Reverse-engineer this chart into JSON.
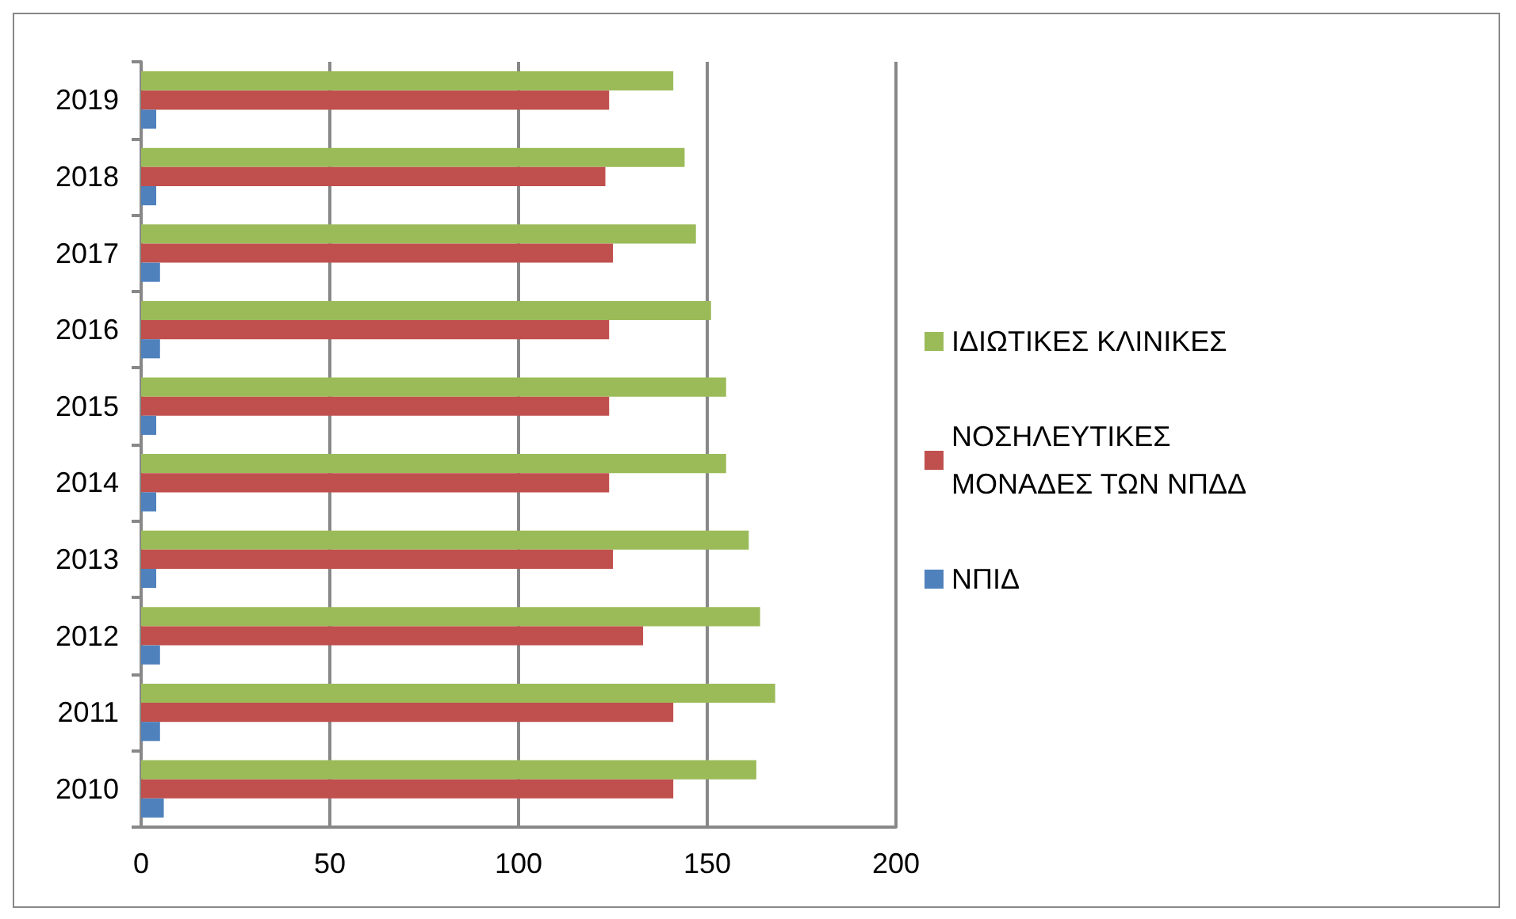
{
  "chart_data": {
    "type": "bar",
    "orientation": "horizontal",
    "categories": [
      "2019",
      "2018",
      "2017",
      "2016",
      "2015",
      "2014",
      "2013",
      "2012",
      "2011",
      "2010"
    ],
    "series": [
      {
        "name": "ΙΔΙΩΤΙΚΕΣ ΚΛΙΝΙΚΕΣ",
        "color": "#9bbb59",
        "values": [
          141,
          144,
          147,
          151,
          155,
          155,
          161,
          164,
          168,
          163
        ]
      },
      {
        "name": "ΝΟΣΗΛΕΥΤΙΚΕΣ ΜΟΝΑΔΕΣ ΤΩΝ ΝΠΔΔ",
        "color": "#c0504d",
        "values": [
          124,
          123,
          125,
          124,
          124,
          124,
          125,
          133,
          141,
          141
        ]
      },
      {
        "name": "ΝΠΙΔ",
        "color": "#4f81bd",
        "values": [
          4,
          4,
          5,
          5,
          4,
          4,
          4,
          5,
          5,
          6
        ]
      }
    ],
    "xlim": [
      0,
      200
    ],
    "xticks": [
      0,
      50,
      100,
      150,
      200
    ],
    "grid": "x",
    "legend": "right"
  }
}
